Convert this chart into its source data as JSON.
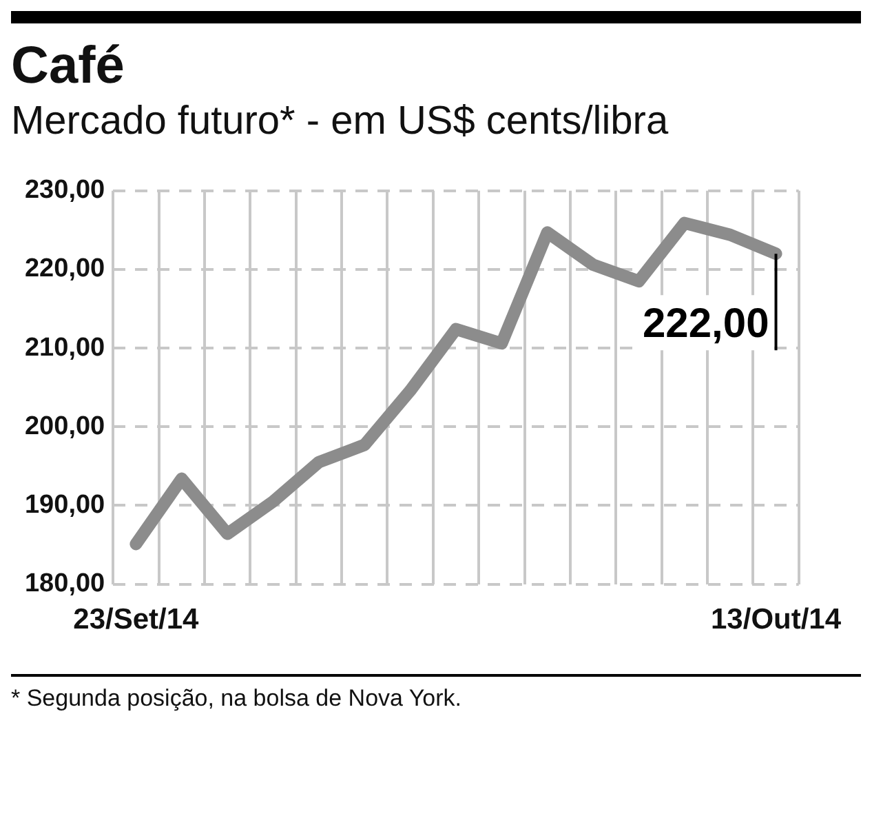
{
  "chart_data": {
    "type": "line",
    "title": "Café",
    "subtitle": "Mercado futuro* - em US$ cents/libra",
    "categories": [
      "23/Set/14",
      null,
      null,
      null,
      null,
      null,
      null,
      null,
      null,
      null,
      null,
      null,
      null,
      null,
      "13/Out/14"
    ],
    "series": [
      {
        "color": "#8c8c8c",
        "values": [
          185.1,
          193.4,
          186.4,
          190.5,
          195.5,
          197.7,
          204.6,
          212.4,
          210.6,
          224.7,
          220.6,
          218.5,
          225.9,
          224.4,
          222.0
        ]
      }
    ],
    "ylim": [
      180,
      230
    ],
    "yticks": [
      {
        "value": 180,
        "label": "180,00"
      },
      {
        "value": 190,
        "label": "190,00"
      },
      {
        "value": 200,
        "label": "200,00"
      },
      {
        "value": 210,
        "label": "210,00"
      },
      {
        "value": 220,
        "label": "220,00"
      },
      {
        "value": 230,
        "label": "230,00"
      }
    ],
    "grid": true,
    "legend": false,
    "marker": "none",
    "line_style": "solid",
    "annotations": [
      {
        "text": "222,00",
        "x": "13/Out/14",
        "y": 222
      },
      "* Segunda posição, na bolsa de Nova York."
    ]
  }
}
